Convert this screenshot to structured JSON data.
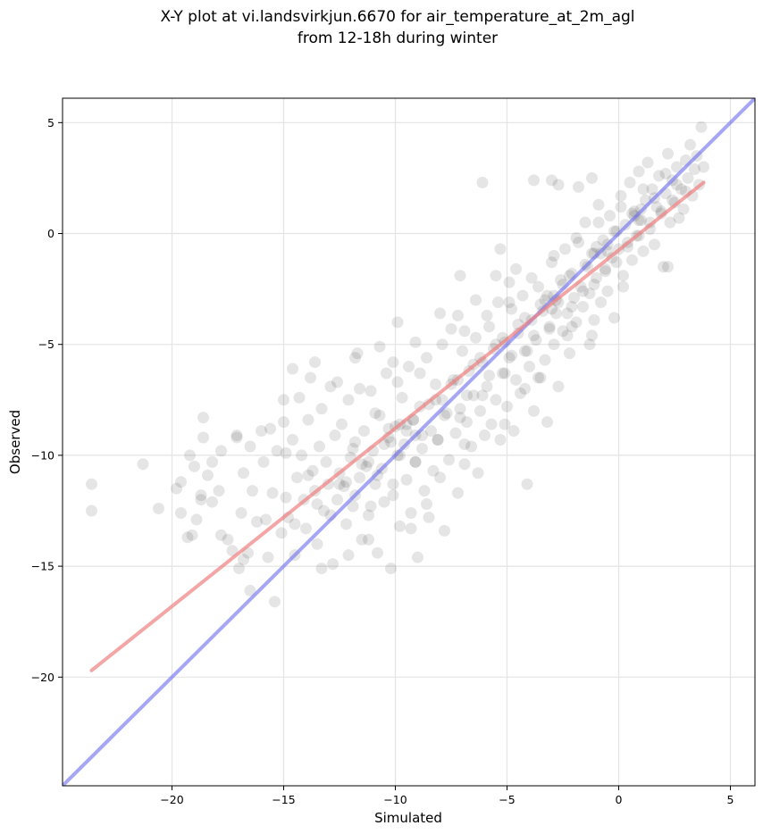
{
  "chart_data": {
    "type": "scatter",
    "title_line1": "X-Y plot at vi.landsvirkjun.6670 for air_temperature_at_2m_agl",
    "title_line2": "from 12-18h during winter",
    "xlabel": "Simulated",
    "ylabel": "Observed",
    "xlim": [
      -24.9,
      6.1
    ],
    "ylim": [
      -24.9,
      6.1
    ],
    "xticks": [
      -20,
      -15,
      -10,
      -5,
      0,
      5
    ],
    "yticks": [
      -20,
      -15,
      -10,
      -5,
      0,
      5
    ],
    "xtick_labels": [
      "−20",
      "−15",
      "−10",
      "−5",
      "0",
      "5"
    ],
    "ytick_labels": [
      "−20",
      "−15",
      "−10",
      "−5",
      "0",
      "5"
    ],
    "grid": true,
    "point_color": "#000000",
    "point_opacity": 0.1,
    "regression_line": {
      "color": "#f08080",
      "x": [
        -23.6,
        3.8
      ],
      "y": [
        -19.7,
        2.3
      ]
    },
    "identity_line": {
      "color": "#6a6af0",
      "x": [
        -24.9,
        6.1
      ],
      "y": [
        -24.9,
        6.1
      ]
    },
    "points": [
      [
        -23.6,
        -11.3
      ],
      [
        -23.6,
        -12.5
      ],
      [
        -21.3,
        -10.4
      ],
      [
        -20.6,
        -12.4
      ],
      [
        -19.8,
        -11.5
      ],
      [
        -19.6,
        -11.2
      ],
      [
        -19.6,
        -12.6
      ],
      [
        -19.3,
        -13.7
      ],
      [
        -19.1,
        -13.6
      ],
      [
        -19.0,
        -10.5
      ],
      [
        -18.9,
        -12.9
      ],
      [
        -18.7,
        -11.8
      ],
      [
        -18.6,
        -9.2
      ],
      [
        -18.6,
        -8.3
      ],
      [
        -18.4,
        -10.9
      ],
      [
        -18.2,
        -12.1
      ],
      [
        -17.9,
        -11.6
      ],
      [
        -17.8,
        -9.8
      ],
      [
        -17.5,
        -13.8
      ],
      [
        -17.3,
        -14.3
      ],
      [
        -17.1,
        -9.2
      ],
      [
        -17.0,
        -15.1
      ],
      [
        -16.9,
        -12.6
      ],
      [
        -16.8,
        -10.8
      ],
      [
        -16.6,
        -14.4
      ],
      [
        -16.5,
        -16.1
      ],
      [
        -16.4,
        -11.6
      ],
      [
        -16.2,
        -13.0
      ],
      [
        -16.0,
        -8.9
      ],
      [
        -15.9,
        -10.3
      ],
      [
        -15.8,
        -12.9
      ],
      [
        -15.7,
        -14.6
      ],
      [
        -15.5,
        -11.7
      ],
      [
        -15.4,
        -16.6
      ],
      [
        -15.3,
        -9.8
      ],
      [
        -15.1,
        -13.5
      ],
      [
        -15.0,
        -8.5
      ],
      [
        -14.9,
        -11.9
      ],
      [
        -14.8,
        -12.8
      ],
      [
        -14.6,
        -9.3
      ],
      [
        -14.5,
        -14.5
      ],
      [
        -14.4,
        -11.0
      ],
      [
        -14.3,
        -7.4
      ],
      [
        -14.2,
        -10.0
      ],
      [
        -14.1,
        -12.0
      ],
      [
        -14.0,
        -13.3
      ],
      [
        -13.9,
        -8.4
      ],
      [
        -13.8,
        -6.5
      ],
      [
        -13.7,
        -10.7
      ],
      [
        -13.6,
        -11.6
      ],
      [
        -13.5,
        -14.0
      ],
      [
        -13.4,
        -9.6
      ],
      [
        -13.3,
        -7.9
      ],
      [
        -13.2,
        -12.5
      ],
      [
        -13.1,
        -10.3
      ],
      [
        -13.0,
        -11.3
      ],
      [
        -12.9,
        -6.9
      ],
      [
        -12.8,
        -14.9
      ],
      [
        -12.7,
        -9.1
      ],
      [
        -12.6,
        -12.0
      ],
      [
        -12.5,
        -10.8
      ],
      [
        -12.4,
        -8.6
      ],
      [
        -12.3,
        -11.4
      ],
      [
        -12.2,
        -13.1
      ],
      [
        -12.1,
        -7.5
      ],
      [
        -12.0,
        -10.1
      ],
      [
        -11.9,
        -12.3
      ],
      [
        -11.8,
        -9.4
      ],
      [
        -11.7,
        -5.4
      ],
      [
        -11.6,
        -11.0
      ],
      [
        -11.5,
        -13.8
      ],
      [
        -11.4,
        -8.9
      ],
      [
        -11.3,
        -10.5
      ],
      [
        -11.2,
        -12.7
      ],
      [
        -11.1,
        -7.1
      ],
      [
        -11.0,
        -9.8
      ],
      [
        -10.9,
        -11.3
      ],
      [
        -10.8,
        -14.4
      ],
      [
        -10.7,
        -8.2
      ],
      [
        -10.6,
        -10.6
      ],
      [
        -10.5,
        -12.1
      ],
      [
        -10.4,
        -6.3
      ],
      [
        -10.3,
        -9.2
      ],
      [
        -10.2,
        -15.1
      ],
      [
        -10.1,
        -11.8
      ],
      [
        -10.0,
        -8.7
      ],
      [
        -9.9,
        -10.0
      ],
      [
        -9.8,
        -13.2
      ],
      [
        -9.7,
        -7.4
      ],
      [
        -9.6,
        -9.5
      ],
      [
        -9.5,
        -11.1
      ],
      [
        -9.4,
        -6.0
      ],
      [
        -9.3,
        -12.6
      ],
      [
        -9.2,
        -8.4
      ],
      [
        -9.1,
        -10.3
      ],
      [
        -9.0,
        -14.6
      ],
      [
        -8.9,
        -7.8
      ],
      [
        -8.8,
        -9.7
      ],
      [
        -8.7,
        -11.6
      ],
      [
        -8.6,
        -5.6
      ],
      [
        -8.5,
        -12.8
      ],
      [
        -8.4,
        -8.9
      ],
      [
        -8.3,
        -10.7
      ],
      [
        -8.2,
        -6.8
      ],
      [
        -8.1,
        -9.3
      ],
      [
        -8.0,
        -11.0
      ],
      [
        -7.9,
        -7.5
      ],
      [
        -7.8,
        -13.4
      ],
      [
        -7.7,
        -8.1
      ],
      [
        -7.6,
        -10.2
      ],
      [
        -7.5,
        -4.3
      ],
      [
        -7.4,
        -6.6
      ],
      [
        -7.3,
        -9.0
      ],
      [
        -7.2,
        -11.7
      ],
      [
        -7.1,
        -7.9
      ],
      [
        -7.0,
        -5.3
      ],
      [
        -6.9,
        -10.4
      ],
      [
        -6.8,
        -8.5
      ],
      [
        -6.7,
        -6.2
      ],
      [
        -6.6,
        -9.6
      ],
      [
        -6.5,
        -7.3
      ],
      [
        -6.4,
        -4.7
      ],
      [
        -6.3,
        -10.8
      ],
      [
        -6.2,
        -8.0
      ],
      [
        -6.1,
        -5.8
      ],
      [
        -6.0,
        -9.1
      ],
      [
        -5.9,
        -6.9
      ],
      [
        -5.8,
        -4.2
      ],
      [
        -5.7,
        -8.6
      ],
      [
        -5.6,
        -5.2
      ],
      [
        -5.5,
        -7.5
      ],
      [
        -5.4,
        -3.1
      ],
      [
        -5.3,
        -9.3
      ],
      [
        -5.2,
        -6.3
      ],
      [
        -5.1,
        -4.9
      ],
      [
        -5.0,
        -7.8
      ],
      [
        -4.9,
        -5.6
      ],
      [
        -4.8,
        -3.4
      ],
      [
        -4.7,
        -8.9
      ],
      [
        -4.6,
        -6.6
      ],
      [
        -4.5,
        -4.5
      ],
      [
        -4.4,
        -7.2
      ],
      [
        -4.3,
        -2.8
      ],
      [
        -4.2,
        -5.3
      ],
      [
        -4.1,
        -11.3
      ],
      [
        -4.0,
        -6.0
      ],
      [
        -3.9,
        -3.9
      ],
      [
        -3.8,
        -8.0
      ],
      [
        -3.7,
        -4.8
      ],
      [
        -3.6,
        -2.4
      ],
      [
        -3.5,
        -6.5
      ],
      [
        -3.4,
        -3.5
      ],
      [
        -3.3,
        -5.7
      ],
      [
        -3.2,
        -8.5
      ],
      [
        -3.1,
        -4.2
      ],
      [
        -3.0,
        -1.3
      ],
      [
        -2.9,
        -5.0
      ],
      [
        -2.8,
        -3.0
      ],
      [
        -2.7,
        -6.9
      ],
      [
        -2.6,
        -2.1
      ],
      [
        -2.5,
        -4.4
      ],
      [
        -2.4,
        -0.7
      ],
      [
        -2.3,
        -3.6
      ],
      [
        -2.2,
        -5.4
      ],
      [
        -2.1,
        -1.8
      ],
      [
        -2.0,
        -2.9
      ],
      [
        -1.9,
        -4.0
      ],
      [
        -1.8,
        -0.4
      ],
      [
        -1.7,
        -2.4
      ],
      [
        -1.6,
        -3.3
      ],
      [
        -1.5,
        0.5
      ],
      [
        -1.4,
        -1.5
      ],
      [
        -1.3,
        -2.7
      ],
      [
        -1.2,
        -4.6
      ],
      [
        -1.1,
        -0.9
      ],
      [
        -1.0,
        -2.0
      ],
      [
        -0.9,
        1.3
      ],
      [
        -0.8,
        -3.1
      ],
      [
        -0.7,
        -0.3
      ],
      [
        -0.6,
        -1.6
      ],
      [
        -0.5,
        -2.6
      ],
      [
        -0.4,
        0.8
      ],
      [
        -0.3,
        -1.1
      ],
      [
        -0.2,
        -3.8
      ],
      [
        -0.1,
        0.1
      ],
      [
        0.0,
        -0.7
      ],
      [
        0.1,
        1.7
      ],
      [
        0.2,
        -1.9
      ],
      [
        0.3,
        0.4
      ],
      [
        0.4,
        -0.4
      ],
      [
        0.5,
        2.3
      ],
      [
        0.6,
        -1.2
      ],
      [
        0.7,
        1.0
      ],
      [
        0.8,
        -0.1
      ],
      [
        0.9,
        2.8
      ],
      [
        1.0,
        0.6
      ],
      [
        1.1,
        -0.8
      ],
      [
        1.2,
        1.5
      ],
      [
        1.3,
        3.2
      ],
      [
        1.4,
        0.2
      ],
      [
        1.5,
        2.0
      ],
      [
        1.6,
        -0.5
      ],
      [
        1.7,
        1.2
      ],
      [
        1.8,
        2.6
      ],
      [
        1.9,
        0.9
      ],
      [
        2.0,
        -1.5
      ],
      [
        2.1,
        1.8
      ],
      [
        2.2,
        3.6
      ],
      [
        2.3,
        0.5
      ],
      [
        2.4,
        2.4
      ],
      [
        2.5,
        1.4
      ],
      [
        2.6,
        3.0
      ],
      [
        2.7,
        0.7
      ],
      [
        2.8,
        2.0
      ],
      [
        2.9,
        1.1
      ],
      [
        3.0,
        3.3
      ],
      [
        3.1,
        2.5
      ],
      [
        3.2,
        4.0
      ],
      [
        3.3,
        1.7
      ],
      [
        3.4,
        2.9
      ],
      [
        3.5,
        3.5
      ],
      [
        3.6,
        2.2
      ],
      [
        3.7,
        4.8
      ],
      [
        3.8,
        3.0
      ],
      [
        -6.1,
        2.3
      ],
      [
        -5.5,
        -1.9
      ],
      [
        -5.3,
        -0.7
      ],
      [
        -3.8,
        2.4
      ],
      [
        -3.0,
        2.4
      ],
      [
        -2.7,
        2.2
      ],
      [
        -1.8,
        2.1
      ],
      [
        -1.2,
        2.5
      ],
      [
        -4.6,
        -1.6
      ],
      [
        -7.1,
        -1.9
      ],
      [
        -9.1,
        -4.9
      ],
      [
        -10.7,
        -5.1
      ],
      [
        -11.8,
        -5.6
      ],
      [
        -9.9,
        -4.0
      ],
      [
        -12.6,
        -6.7
      ],
      [
        -14.6,
        -6.1
      ],
      [
        -13.6,
        -5.8
      ],
      [
        -15.0,
        -7.5
      ],
      [
        -11.6,
        -7.0
      ],
      [
        -10.1,
        -5.8
      ],
      [
        -8.0,
        -3.6
      ],
      [
        -7.2,
        -3.7
      ],
      [
        -6.4,
        -3.0
      ],
      [
        -4.9,
        -2.2
      ],
      [
        -2.3,
        -4.6
      ],
      [
        -1.1,
        -3.9
      ],
      [
        0.2,
        -2.4
      ],
      [
        2.2,
        -1.5
      ],
      [
        -1.3,
        -5.0
      ],
      [
        -2.1,
        -4.2
      ],
      [
        -3.6,
        -6.5
      ],
      [
        -4.2,
        -7.0
      ],
      [
        -5.1,
        -8.6
      ],
      [
        -6.9,
        -9.5
      ],
      [
        -8.6,
        -12.2
      ],
      [
        -9.3,
        -13.3
      ],
      [
        -11.2,
        -13.8
      ],
      [
        -12.1,
        -14.5
      ],
      [
        -13.3,
        -15.1
      ],
      [
        -16.8,
        -14.7
      ],
      [
        -17.8,
        -13.6
      ],
      [
        -18.7,
        -12.0
      ],
      [
        -19.2,
        -10.0
      ],
      [
        -18.2,
        -10.3
      ],
      [
        -17.1,
        -9.1
      ],
      [
        -16.5,
        -9.6
      ],
      [
        -15.6,
        -8.8
      ],
      [
        -14.9,
        -9.9
      ],
      [
        -13.9,
        -10.9
      ],
      [
        -12.9,
        -12.7
      ],
      [
        -11.9,
        -9.7
      ],
      [
        -10.9,
        -8.1
      ],
      [
        -9.9,
        -6.7
      ],
      [
        -8.9,
        -6.3
      ],
      [
        -7.9,
        -5.0
      ],
      [
        -6.9,
        -4.4
      ],
      [
        -5.9,
        -3.7
      ],
      [
        -4.9,
        -3.1
      ],
      [
        -3.9,
        -2.0
      ],
      [
        -2.9,
        -1.0
      ],
      [
        -1.9,
        -0.2
      ],
      [
        -0.9,
        0.5
      ],
      [
        0.1,
        1.2
      ],
      [
        1.1,
        2.0
      ],
      [
        2.1,
        2.7
      ],
      [
        -0.5,
        -0.8
      ],
      [
        -1.5,
        -1.4
      ],
      [
        -2.5,
        -2.3
      ],
      [
        -3.5,
        -3.2
      ],
      [
        -4.5,
        -4.1
      ],
      [
        -5.5,
        -5.0
      ],
      [
        -6.5,
        -5.9
      ],
      [
        -7.5,
        -6.8
      ],
      [
        -8.5,
        -7.7
      ],
      [
        -9.5,
        -8.6
      ],
      [
        -10.5,
        -9.5
      ],
      [
        -11.5,
        -10.4
      ],
      [
        -12.5,
        -11.3
      ],
      [
        -13.5,
        -12.2
      ],
      [
        -14.5,
        -13.1
      ],
      [
        -0.2,
        0.1
      ],
      [
        -1.2,
        -0.9
      ],
      [
        -2.2,
        -1.9
      ],
      [
        -3.2,
        -2.8
      ],
      [
        -4.2,
        -3.8
      ],
      [
        -5.2,
        -4.7
      ],
      [
        -6.2,
        -5.6
      ],
      [
        -7.2,
        -6.6
      ],
      [
        -8.2,
        -7.5
      ],
      [
        -9.2,
        -8.4
      ],
      [
        -10.2,
        -9.4
      ],
      [
        -11.2,
        -10.3
      ],
      [
        -12.2,
        -11.2
      ],
      [
        0.6,
        0.9
      ],
      [
        1.6,
        1.6
      ],
      [
        2.6,
        2.2
      ],
      [
        -2.8,
        -3.6
      ],
      [
        -3.8,
        -4.6
      ],
      [
        -4.8,
        -5.5
      ],
      [
        -5.8,
        -6.4
      ],
      [
        -6.8,
        -7.3
      ],
      [
        -7.8,
        -8.2
      ],
      [
        -8.8,
        -9.1
      ],
      [
        -9.8,
        -10.0
      ],
      [
        -10.8,
        -10.9
      ],
      [
        -11.8,
        -11.8
      ],
      [
        -1.6,
        -2.6
      ],
      [
        -0.6,
        -1.7
      ],
      [
        0.4,
        -0.6
      ],
      [
        1.4,
        0.5
      ],
      [
        2.4,
        1.5
      ],
      [
        3.0,
        1.9
      ],
      [
        1.9,
        1.0
      ],
      [
        0.9,
        -0.1
      ],
      [
        -0.1,
        -1.3
      ],
      [
        -1.1,
        -2.3
      ],
      [
        -2.1,
        -3.3
      ],
      [
        -3.1,
        -4.3
      ],
      [
        -4.1,
        -5.3
      ],
      [
        -5.1,
        -6.3
      ],
      [
        -6.1,
        -7.3
      ],
      [
        -7.1,
        -8.3
      ],
      [
        -8.1,
        -9.3
      ],
      [
        -9.1,
        -10.3
      ],
      [
        -10.1,
        -11.3
      ],
      [
        -11.1,
        -12.3
      ],
      [
        -3.3,
        -3.0
      ],
      [
        -3.0,
        -3.4
      ],
      [
        -2.7,
        -3.1
      ],
      [
        -2.9,
        -2.8
      ],
      [
        -0.8,
        -0.9
      ],
      [
        -0.5,
        -0.5
      ],
      [
        -1.0,
        -0.6
      ],
      [
        0.7,
        0.8
      ],
      [
        1.0,
        1.1
      ],
      [
        0.9,
        0.6
      ],
      [
        -9.5,
        -8.9
      ],
      [
        -9.8,
        -8.6
      ],
      [
        -9.1,
        -9.1
      ],
      [
        -10.3,
        -8.8
      ]
    ]
  }
}
